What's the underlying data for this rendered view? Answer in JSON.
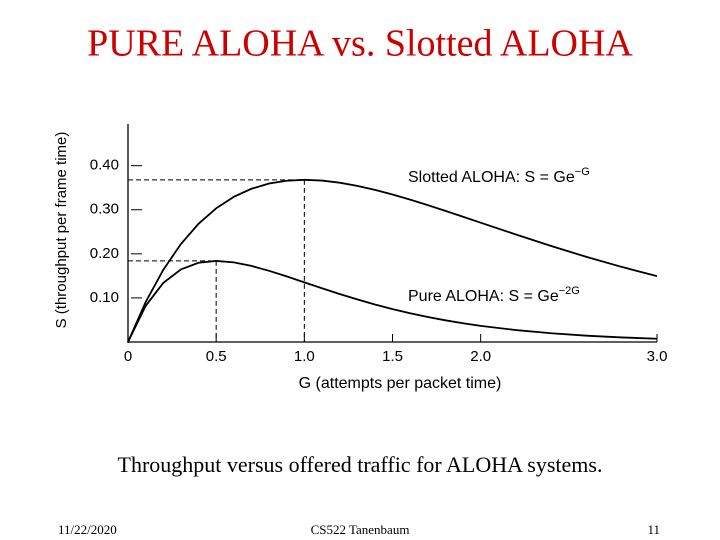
{
  "title": "PURE ALOHA vs. Slotted ALOHA",
  "chart_data": {
    "type": "line",
    "xlabel": "G (attempts per packet time)",
    "ylabel": "S (throughput per frame time)",
    "x": [
      0,
      0.1,
      0.2,
      0.3,
      0.4,
      0.5,
      0.6,
      0.7,
      0.8,
      0.9,
      1.0,
      1.1,
      1.2,
      1.3,
      1.4,
      1.5,
      1.6,
      1.7,
      1.8,
      1.9,
      2.0,
      2.2,
      2.4,
      2.6,
      2.8,
      3.0
    ],
    "series": [
      {
        "name": "Slotted ALOHA: S = Ge",
        "name_superscript": "−G",
        "color": "#000000",
        "values": [
          0,
          0.0905,
          0.1637,
          0.2222,
          0.2681,
          0.3033,
          0.3293,
          0.3476,
          0.3595,
          0.3659,
          0.3679,
          0.3662,
          0.3614,
          0.3543,
          0.3452,
          0.3347,
          0.323,
          0.3106,
          0.2975,
          0.2842,
          0.2707,
          0.2438,
          0.2177,
          0.1931,
          0.1703,
          0.1494
        ]
      },
      {
        "name": "Pure ALOHA: S = Ge",
        "name_superscript": "−2G",
        "color": "#000000",
        "values": [
          0,
          0.0819,
          0.1341,
          0.1646,
          0.1797,
          0.1839,
          0.1807,
          0.1726,
          0.1615,
          0.1488,
          0.1353,
          0.1219,
          0.1089,
          0.0966,
          0.0851,
          0.0747,
          0.0652,
          0.0568,
          0.0492,
          0.0425,
          0.0366,
          0.0271,
          0.0198,
          0.0143,
          0.0104,
          0.0074
        ]
      }
    ],
    "markers": [
      {
        "x": 1.0,
        "y": 0.3679
      },
      {
        "x": 0.5,
        "y": 0.1839
      }
    ],
    "xlim": [
      0,
      3.0
    ],
    "ylim": [
      0,
      0.49
    ],
    "xticks": [
      0,
      0.5,
      {
        "value": 1,
        "label": "1.0"
      },
      1.5,
      {
        "value": 2,
        "label": "2.0"
      },
      {
        "value": 3,
        "label": "3.0"
      }
    ],
    "yticks": [
      {
        "value": 0.1,
        "label": "0.10"
      },
      {
        "value": 0.2,
        "label": "0.20"
      },
      {
        "value": 0.3,
        "label": "0.30"
      },
      {
        "value": 0.4,
        "label": "0.40"
      }
    ],
    "grid": false
  },
  "caption": "Throughput versus offered traffic for ALOHA systems.",
  "footer": {
    "date": "11/22/2020",
    "course": "CS522 Tanenbaum",
    "page": "11"
  }
}
